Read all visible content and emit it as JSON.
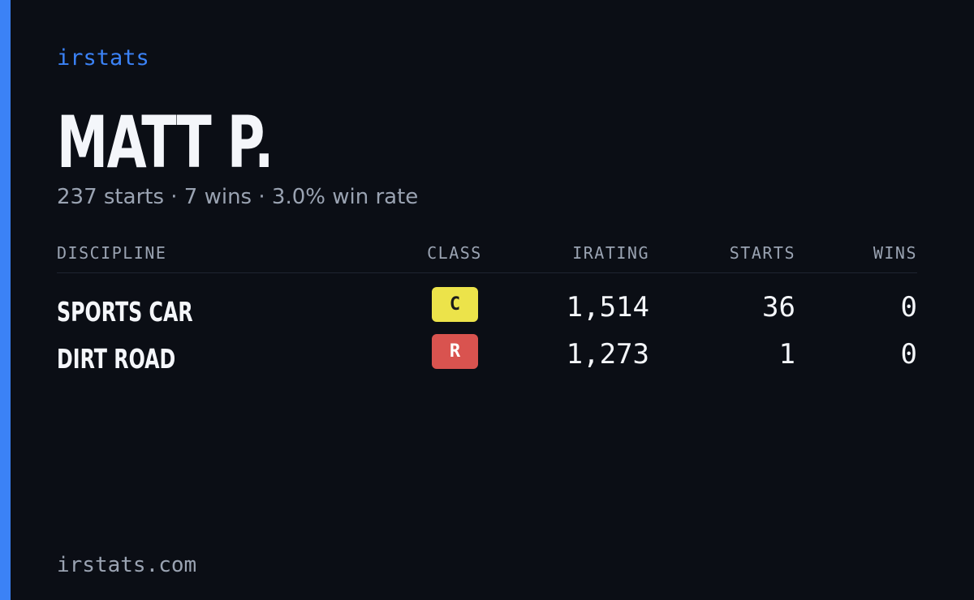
{
  "brand": "irstats",
  "profile": {
    "name": "MATT P.",
    "summary": "237 starts · 7 wins · 3.0% win rate"
  },
  "table": {
    "headers": [
      "DISCIPLINE",
      "CLASS",
      "IRATING",
      "STARTS",
      "WINS"
    ],
    "rows": [
      [
        "SPORTS CAR",
        "C",
        "1,514",
        "36",
        "0"
      ],
      [
        "DIRT ROAD",
        "R",
        "1,273",
        "1",
        "0"
      ]
    ]
  },
  "footer": "irstats.com"
}
